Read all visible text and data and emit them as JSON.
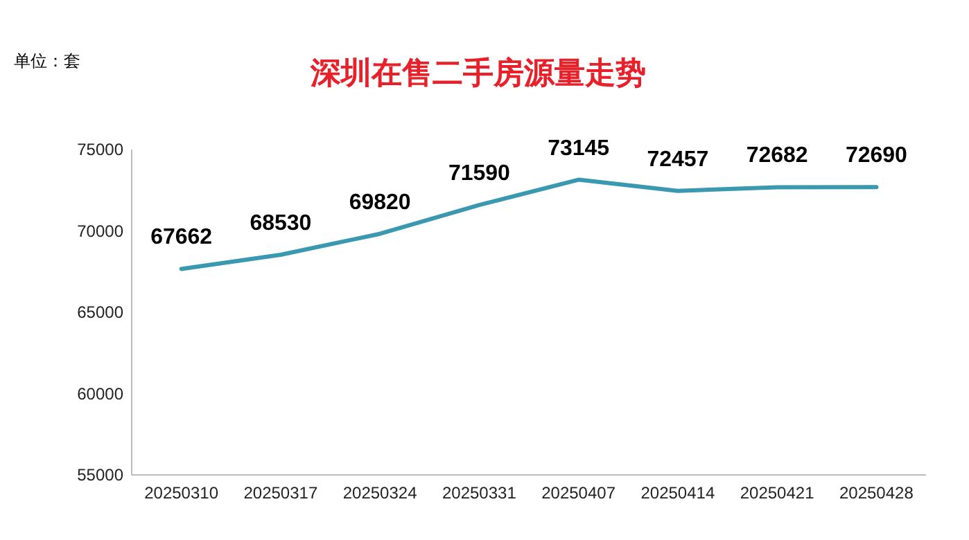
{
  "chart_data": {
    "type": "line",
    "title": "深圳在售二手房源量走势",
    "ylabel": "单位：套",
    "categories": [
      "20250310",
      "20250317",
      "20250324",
      "20250331",
      "20250407",
      "20250414",
      "20250421",
      "20250428"
    ],
    "series": [
      {
        "color": "#3a98b0",
        "values": [
          67662,
          68530,
          69820,
          71590,
          73145,
          72457,
          72682,
          72690
        ]
      }
    ],
    "ylim": [
      55000,
      75000
    ],
    "yticks": [
      55000,
      60000,
      65000,
      70000,
      75000
    ],
    "data_labels": true,
    "grid": false,
    "marker": "none",
    "line_style": "solid"
  }
}
